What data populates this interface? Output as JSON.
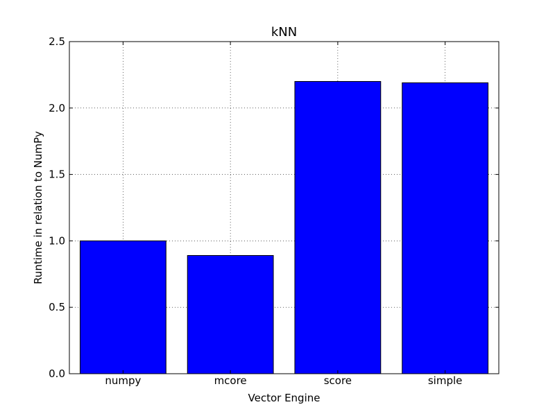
{
  "chart_data": {
    "type": "bar",
    "title": "kNN",
    "xlabel": "Vector Engine",
    "ylabel": "Runtime in relation to NumPy",
    "categories": [
      "numpy",
      "mcore",
      "score",
      "simple"
    ],
    "values": [
      1.0,
      0.89,
      2.2,
      2.19
    ],
    "ylim": [
      0,
      2.5
    ],
    "yticks": [
      0,
      0.5,
      1.0,
      1.5,
      2.0,
      2.5
    ],
    "ytick_labels": [
      "0.0",
      "0.5",
      "1.0",
      "1.5",
      "2.0",
      "2.5"
    ],
    "grid": true,
    "grid_style": "dotted",
    "legend": "none",
    "bar_color": "#0000ff",
    "edge_color": "#000000"
  }
}
